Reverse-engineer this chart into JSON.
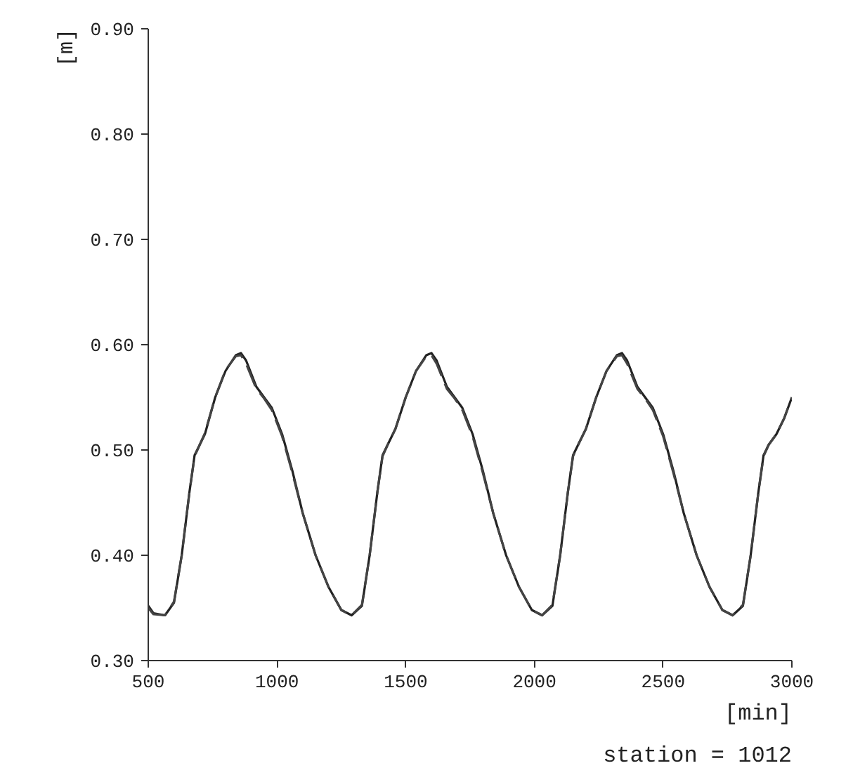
{
  "chart_data": {
    "type": "line",
    "xlabel": "[min]",
    "ylabel": "[m]",
    "annotations": [
      "station = 1012"
    ],
    "x": [
      500,
      520,
      565,
      600,
      630,
      660,
      680,
      700,
      720,
      760,
      800,
      840,
      860,
      880,
      920,
      950,
      980,
      1020,
      1060,
      1100,
      1150,
      1200,
      1250,
      1290,
      1330,
      1360,
      1390,
      1410,
      1430,
      1460,
      1500,
      1540,
      1580,
      1600,
      1620,
      1660,
      1690,
      1720,
      1760,
      1800,
      1840,
      1890,
      1940,
      1990,
      2030,
      2070,
      2100,
      2130,
      2150,
      2170,
      2200,
      2240,
      2280,
      2320,
      2340,
      2360,
      2400,
      2430,
      2460,
      2500,
      2540,
      2580,
      2630,
      2680,
      2730,
      2770,
      2810,
      2840,
      2870,
      2890,
      2910,
      2940,
      2970,
      3000
    ],
    "series": [
      {
        "color": "#222222",
        "line_style": "solid",
        "values": [
          0.352,
          0.345,
          0.343,
          0.355,
          0.4,
          0.46,
          0.495,
          0.505,
          0.515,
          0.55,
          0.575,
          0.59,
          0.592,
          0.585,
          0.56,
          0.55,
          0.54,
          0.515,
          0.48,
          0.44,
          0.4,
          0.37,
          0.348,
          0.343,
          0.352,
          0.4,
          0.46,
          0.495,
          0.505,
          0.52,
          0.55,
          0.575,
          0.59,
          0.592,
          0.585,
          0.56,
          0.55,
          0.54,
          0.515,
          0.48,
          0.44,
          0.4,
          0.37,
          0.348,
          0.343,
          0.352,
          0.4,
          0.46,
          0.495,
          0.505,
          0.52,
          0.55,
          0.575,
          0.59,
          0.592,
          0.585,
          0.56,
          0.55,
          0.54,
          0.515,
          0.48,
          0.44,
          0.4,
          0.37,
          0.348,
          0.343,
          0.352,
          0.4,
          0.46,
          0.495,
          0.505,
          0.515,
          0.53,
          0.55
        ]
      },
      {
        "color": "#444444",
        "line_style": "dashed",
        "values": [
          0.35,
          0.344,
          0.343,
          0.356,
          0.4,
          0.46,
          0.494,
          0.505,
          0.516,
          0.55,
          0.576,
          0.589,
          0.59,
          0.582,
          0.558,
          0.549,
          0.538,
          0.513,
          0.478,
          0.44,
          0.4,
          0.37,
          0.348,
          0.343,
          0.353,
          0.4,
          0.46,
          0.494,
          0.505,
          0.52,
          0.55,
          0.575,
          0.589,
          0.59,
          0.582,
          0.558,
          0.549,
          0.538,
          0.513,
          0.478,
          0.44,
          0.4,
          0.37,
          0.348,
          0.343,
          0.353,
          0.4,
          0.46,
          0.494,
          0.505,
          0.52,
          0.55,
          0.575,
          0.589,
          0.59,
          0.582,
          0.558,
          0.549,
          0.538,
          0.513,
          0.478,
          0.44,
          0.4,
          0.37,
          0.348,
          0.343,
          0.353,
          0.4,
          0.46,
          0.494,
          0.505,
          0.515,
          0.53,
          0.55
        ]
      }
    ],
    "xlim": [
      500,
      3000
    ],
    "xticks": [
      500,
      1000,
      1500,
      2000,
      2500,
      3000
    ],
    "ylim": [
      0.3,
      0.9
    ],
    "yticks": [
      {
        "value": 0.3,
        "label": "0.30"
      },
      {
        "value": 0.4,
        "label": "0.40"
      },
      {
        "value": 0.5,
        "label": "0.50"
      },
      {
        "value": 0.6,
        "label": "0.60"
      },
      {
        "value": 0.7,
        "label": "0.70"
      },
      {
        "value": 0.8,
        "label": "0.80"
      },
      {
        "value": 0.9,
        "label": "0.90"
      }
    ],
    "grid": false
  }
}
